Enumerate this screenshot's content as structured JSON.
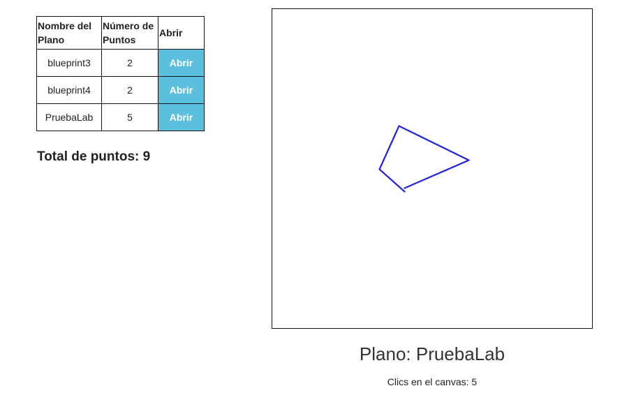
{
  "table": {
    "headers": {
      "name": "Nombre del Plano",
      "points": "Número de Puntos",
      "open": "Abrir"
    },
    "rows": [
      {
        "name": "blueprint3",
        "points": "2",
        "button": "Abrir"
      },
      {
        "name": "blueprint4",
        "points": "2",
        "button": "Abrir"
      },
      {
        "name": "PruebaLab",
        "points": "5",
        "button": "Abrir"
      }
    ]
  },
  "total": {
    "label": "Total de puntos: 9"
  },
  "canvas": {
    "stroke_color": "#2222e0",
    "points": [
      [
        580,
        275
      ],
      [
        544,
        243
      ],
      [
        572,
        181
      ],
      [
        672,
        230
      ],
      [
        580,
        270
      ]
    ]
  },
  "plan": {
    "title": "Plano: PruebaLab"
  },
  "clicks": {
    "label": "Clics en el canvas: 5"
  },
  "colors": {
    "open_button": "#5bc0de"
  }
}
